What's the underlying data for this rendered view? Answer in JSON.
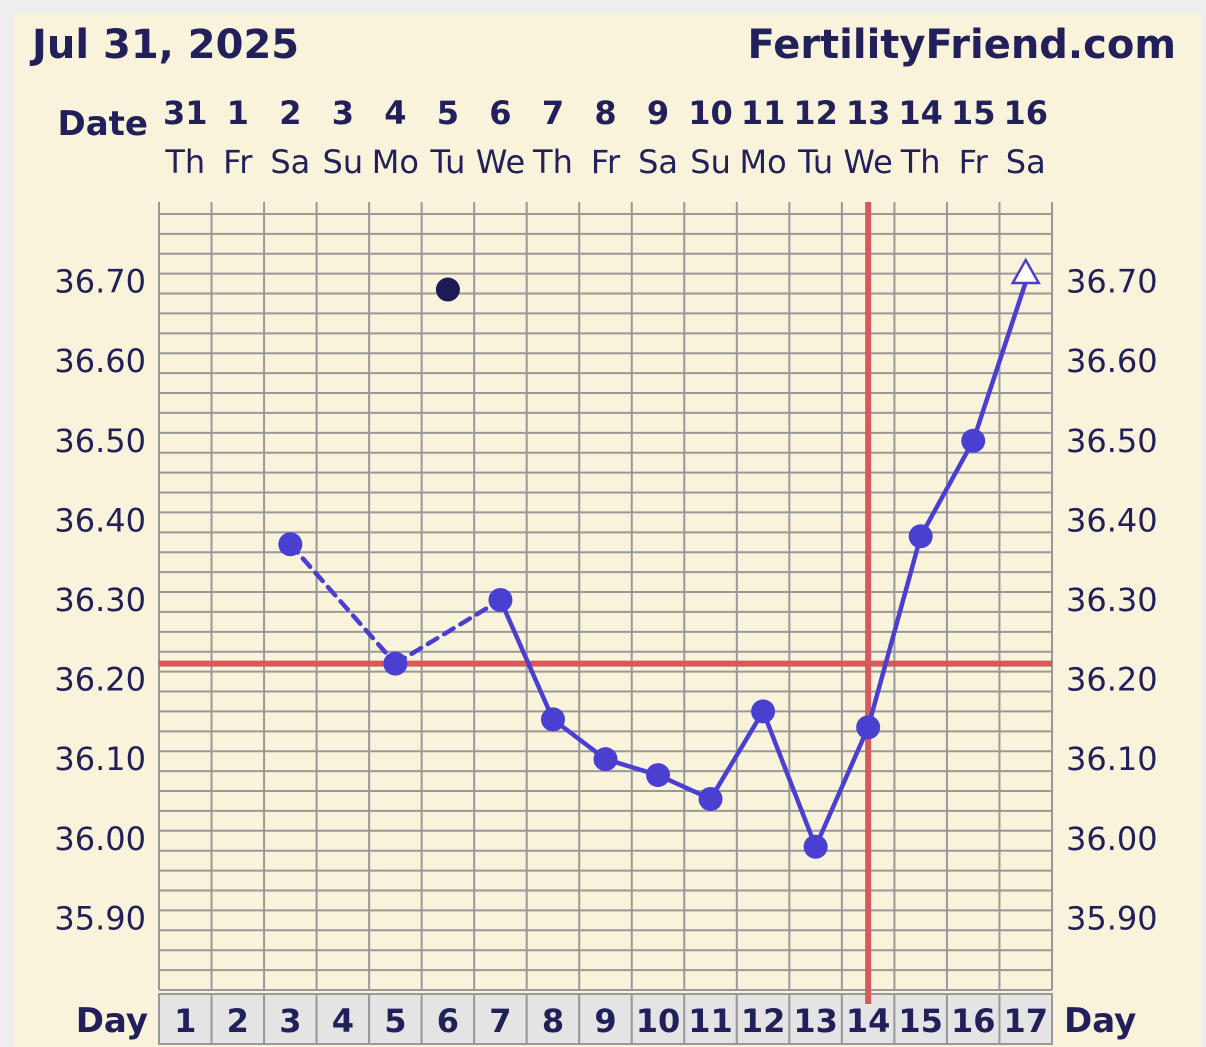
{
  "header": {
    "date": "Jul 31, 2025",
    "site": "FertilityFriend.com"
  },
  "labels": {
    "date_row": "Date",
    "day_row": "Day"
  },
  "colors": {
    "background": "#f8f3da",
    "grid": "#999999",
    "text": "#22205a",
    "temp_line": "#4a3fd0",
    "coverline": "#d65a5a",
    "outlier_point": "#1e1a55",
    "day_cells": "#e4e4e4"
  },
  "chart_data": {
    "type": "line",
    "dates": [
      "31",
      "1",
      "2",
      "3",
      "4",
      "5",
      "6",
      "7",
      "8",
      "9",
      "10",
      "11",
      "12",
      "13",
      "14",
      "15",
      "16"
    ],
    "weekdays": [
      "Th",
      "Fr",
      "Sa",
      "Su",
      "Mo",
      "Tu",
      "We",
      "Th",
      "Fr",
      "Sa",
      "Su",
      "Mo",
      "Tu",
      "We",
      "Th",
      "Fr",
      "Sa"
    ],
    "days": [
      1,
      2,
      3,
      4,
      5,
      6,
      7,
      8,
      9,
      10,
      11,
      12,
      13,
      14,
      15,
      16,
      17
    ],
    "ylabels": [
      "36.70",
      "36.60",
      "36.50",
      "36.40",
      "36.30",
      "36.20",
      "36.10",
      "36.00",
      "35.90"
    ],
    "ylim": [
      35.81,
      36.8
    ],
    "series": [
      {
        "points": [
          {
            "day": 3,
            "temp": 36.37
          },
          {
            "day": 5,
            "temp": 36.22
          },
          {
            "day": 7,
            "temp": 36.3
          },
          {
            "day": 8,
            "temp": 36.15
          },
          {
            "day": 9,
            "temp": 36.1
          },
          {
            "day": 10,
            "temp": 36.08
          },
          {
            "day": 11,
            "temp": 36.05
          },
          {
            "day": 12,
            "temp": 36.16
          },
          {
            "day": 13,
            "temp": 35.99
          },
          {
            "day": 14,
            "temp": 36.14
          },
          {
            "day": 15,
            "temp": 36.38
          },
          {
            "day": 16,
            "temp": 36.5
          }
        ],
        "dashed_segments": [
          [
            3,
            5
          ],
          [
            5,
            7
          ]
        ],
        "off_scale_up": {
          "day": 17,
          "marker": "open-triangle"
        }
      }
    ],
    "discarded_points": [
      {
        "day": 6,
        "temp": 36.69
      }
    ],
    "coverline": 36.22,
    "ovulation_day": 14
  }
}
